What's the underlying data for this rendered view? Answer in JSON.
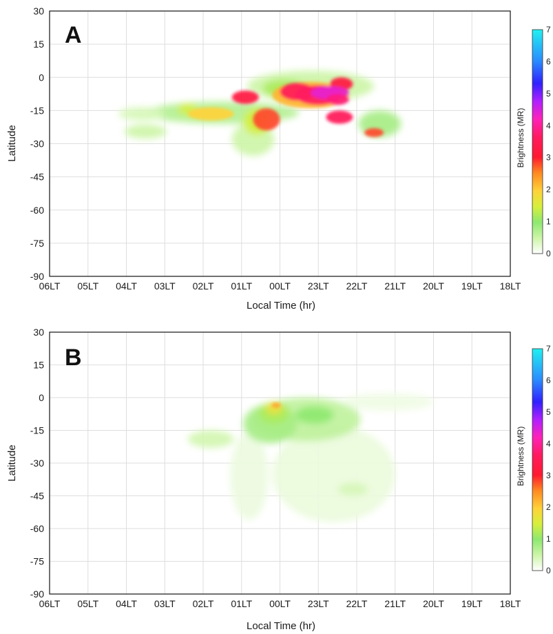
{
  "chart_data": [
    {
      "type": "heatmap",
      "panel_label": "A",
      "xlabel": "Local Time (hr)",
      "ylabel": "Latitude",
      "xticks": [
        "06LT",
        "05LT",
        "04LT",
        "03LT",
        "02LT",
        "01LT",
        "00LT",
        "23LT",
        "22LT",
        "21LT",
        "20LT",
        "19LT",
        "18LT"
      ],
      "yticks": [
        30,
        15,
        0,
        -15,
        -30,
        -45,
        -60,
        -75,
        -90
      ],
      "ylim": [
        -90,
        30
      ],
      "colorbar": {
        "label": "Brightness (MR)",
        "ticks": [
          0,
          1,
          2,
          3,
          4,
          5,
          6,
          7
        ],
        "range": [
          0,
          7
        ]
      },
      "grid": true,
      "blobs": [
        {
          "lt": 23.2,
          "lat": -4.0,
          "rlt": 1.65,
          "rlat": 7.0,
          "v": 0.5
        },
        {
          "lt": 1.5,
          "lat": -16.0,
          "rlt": 2.0,
          "rlat": 5.0,
          "v": 0.7
        },
        {
          "lt": 3.5,
          "lat": -24.5,
          "rlt": 0.55,
          "rlat": 3.2,
          "v": 0.5
        },
        {
          "lt": 3.6,
          "lat": -16.5,
          "rlt": 0.6,
          "rlat": 3.0,
          "v": 0.4
        },
        {
          "lt": 0.7,
          "lat": -28.0,
          "rlt": 0.55,
          "rlat": 7.5,
          "v": 0.5
        },
        {
          "lt": 21.4,
          "lat": -21.0,
          "rlt": 0.55,
          "rlat": 6.0,
          "v": 0.8
        },
        {
          "lt": 23.2,
          "lat": -8.0,
          "rlt": 1.0,
          "rlat": 6.0,
          "v": 2.2
        },
        {
          "lt": 1.8,
          "lat": -16.5,
          "rlt": 0.6,
          "rlat": 3.0,
          "v": 2.0
        },
        {
          "lt": 2.4,
          "lat": -14.5,
          "rlt": 0.25,
          "rlat": 2.5,
          "v": 1.5
        },
        {
          "lt": 0.6,
          "lat": -20.0,
          "rlt": 0.35,
          "rlat": 6.0,
          "v": 1.5
        },
        {
          "lt": 23.9,
          "lat": -5.0,
          "rlt": 0.55,
          "rlat": 4.0,
          "v": 1.2
        },
        {
          "lt": 0.9,
          "lat": -9.0,
          "rlt": 0.35,
          "rlat": 3.0,
          "v": 3.2
        },
        {
          "lt": 0.35,
          "lat": -19.0,
          "rlt": 0.35,
          "rlat": 5.0,
          "v": 2.8
        },
        {
          "lt": 23.55,
          "lat": -6.5,
          "rlt": 0.45,
          "rlat": 4.0,
          "v": 3.5
        },
        {
          "lt": 23.0,
          "lat": -8.0,
          "rlt": 0.6,
          "rlat": 4.5,
          "v": 3.6
        },
        {
          "lt": 22.4,
          "lat": -3.0,
          "rlt": 0.3,
          "rlat": 3.0,
          "v": 3.2
        },
        {
          "lt": 22.45,
          "lat": -18.0,
          "rlt": 0.35,
          "rlat": 3.0,
          "v": 3.5
        },
        {
          "lt": 21.55,
          "lat": -25.0,
          "rlt": 0.25,
          "rlat": 2.0,
          "v": 2.8
        },
        {
          "lt": 22.7,
          "lat": -7.0,
          "rlt": 0.5,
          "rlat": 3.0,
          "v": 4.4
        },
        {
          "lt": 22.5,
          "lat": -10.0,
          "rlt": 0.3,
          "rlat": 2.5,
          "v": 3.8
        }
      ]
    },
    {
      "type": "heatmap",
      "panel_label": "B",
      "xlabel": "Local Time (hr)",
      "ylabel": "Latitude",
      "xticks": [
        "06LT",
        "05LT",
        "04LT",
        "03LT",
        "02LT",
        "01LT",
        "00LT",
        "23LT",
        "22LT",
        "21LT",
        "20LT",
        "19LT",
        "18LT"
      ],
      "yticks": [
        30,
        15,
        0,
        -15,
        -30,
        -45,
        -60,
        -75,
        -90
      ],
      "ylim": [
        -90,
        30
      ],
      "colorbar": {
        "label": "Brightness (MR)",
        "ticks": [
          0,
          1,
          2,
          3,
          4,
          5,
          6,
          7
        ],
        "range": [
          0,
          7
        ]
      },
      "grid": true,
      "blobs": [
        {
          "lt": 22.6,
          "lat": -35.0,
          "rlt": 1.6,
          "rlat": 22.0,
          "v": 0.2
        },
        {
          "lt": 0.8,
          "lat": -36.0,
          "rlt": 0.5,
          "rlat": 20.0,
          "v": 0.18
        },
        {
          "lt": 23.3,
          "lat": -10.0,
          "rlt": 1.4,
          "rlat": 10.0,
          "v": 0.6
        },
        {
          "lt": 0.25,
          "lat": -12.0,
          "rlt": 0.7,
          "rlat": 9.0,
          "v": 0.8
        },
        {
          "lt": 0.15,
          "lat": -7.0,
          "rlt": 0.4,
          "rlat": 5.0,
          "v": 1.2
        },
        {
          "lt": 23.1,
          "lat": -8.0,
          "rlt": 0.5,
          "rlat": 4.0,
          "v": 1.0
        },
        {
          "lt": 0.15,
          "lat": -5.0,
          "rlt": 0.22,
          "rlat": 2.5,
          "v": 1.8
        },
        {
          "lt": 0.1,
          "lat": -3.5,
          "rlt": 0.12,
          "rlat": 1.2,
          "v": 2.3
        },
        {
          "lt": 21.2,
          "lat": -2.0,
          "rlt": 1.2,
          "rlat": 4.0,
          "v": 0.15
        },
        {
          "lt": 1.8,
          "lat": -19.0,
          "rlt": 0.6,
          "rlat": 4.0,
          "v": 0.45
        },
        {
          "lt": 22.1,
          "lat": -42.0,
          "rlt": 0.4,
          "rlat": 3.0,
          "v": 0.4
        }
      ]
    }
  ]
}
